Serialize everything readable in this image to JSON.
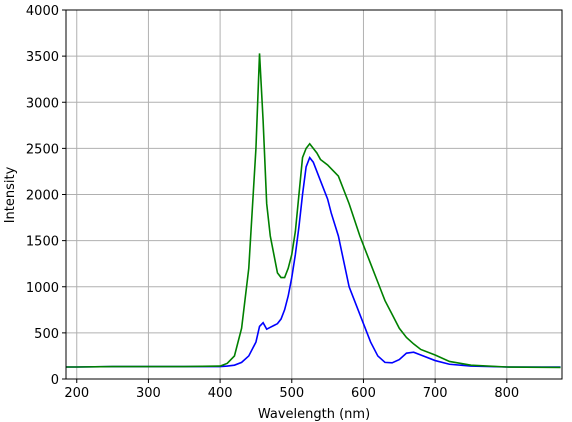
{
  "chart_data": {
    "type": "line",
    "x_label": "Wavelength (nm)",
    "y_label": "Intensity",
    "x": [
      185,
      200,
      250,
      300,
      350,
      400,
      410,
      420,
      430,
      440,
      450,
      455,
      460,
      465,
      470,
      475,
      480,
      485,
      490,
      495,
      500,
      505,
      510,
      515,
      520,
      525,
      530,
      535,
      540,
      550,
      555,
      565,
      580,
      595,
      600,
      610,
      620,
      630,
      640,
      650,
      660,
      670,
      680,
      700,
      720,
      750,
      800,
      875
    ],
    "series": [
      {
        "color": "#0000ff",
        "values": [
          130,
          130,
          135,
          135,
          135,
          135,
          140,
          150,
          180,
          250,
          400,
          570,
          610,
          540,
          560,
          580,
          600,
          650,
          750,
          900,
          1100,
          1350,
          1650,
          2000,
          2300,
          2400,
          2350,
          2250,
          2150,
          1950,
          1800,
          1550,
          1000,
          700,
          600,
          400,
          250,
          180,
          175,
          210,
          280,
          290,
          260,
          200,
          160,
          140,
          130,
          130
        ]
      },
      {
        "color": "#008000",
        "values": [
          130,
          130,
          135,
          135,
          135,
          140,
          170,
          250,
          550,
          1200,
          2500,
          3530,
          2800,
          1900,
          1550,
          1350,
          1150,
          1100,
          1100,
          1200,
          1350,
          1600,
          2000,
          2400,
          2500,
          2550,
          2500,
          2450,
          2380,
          2320,
          2280,
          2200,
          1900,
          1550,
          1450,
          1250,
          1050,
          850,
          700,
          550,
          450,
          380,
          320,
          260,
          190,
          150,
          130,
          125
        ]
      }
    ],
    "xlim": [
      185,
      877
    ],
    "ylim": [
      0,
      4000
    ],
    "xticks": [
      200,
      300,
      400,
      500,
      600,
      700,
      800
    ],
    "yticks": [
      0,
      500,
      1000,
      1500,
      2000,
      2500,
      3000,
      3500,
      4000
    ],
    "grid": true
  }
}
